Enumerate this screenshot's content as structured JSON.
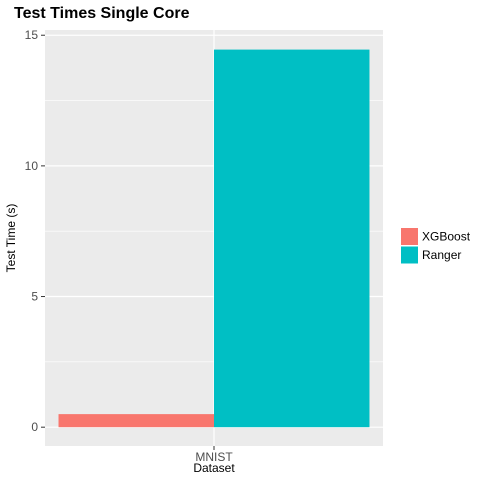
{
  "chart_data": {
    "type": "bar",
    "title": "Test Times Single Core",
    "xlabel": "Dataset",
    "ylabel": "Test Time (s)",
    "categories": [
      "MNIST"
    ],
    "series": [
      {
        "name": "XGBoost",
        "values": [
          0.5
        ],
        "color": "#F8766D"
      },
      {
        "name": "Ranger",
        "values": [
          14.45
        ],
        "color": "#00BFC4"
      }
    ],
    "ylim": [
      -0.72,
      15.2
    ],
    "yticks": [
      0,
      5,
      10,
      15
    ],
    "ytick_labels": [
      "0",
      "5",
      "10",
      "15"
    ],
    "grid": true,
    "legend_position": "right",
    "panel_background": "#EBEBEB",
    "grid_color": "#FFFFFF"
  }
}
